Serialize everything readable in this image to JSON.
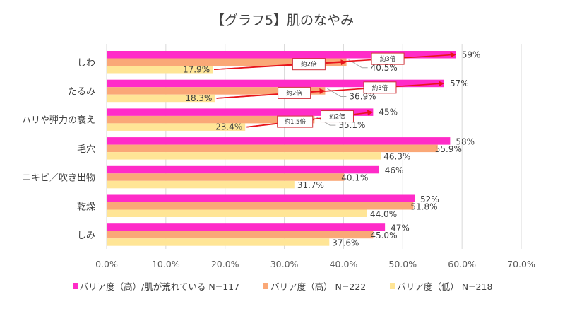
{
  "chart_data": {
    "type": "bar",
    "orientation": "horizontal",
    "title": "【グラフ5】肌のなやみ",
    "xlabel": "",
    "ylabel": "",
    "xlim": [
      0,
      70
    ],
    "x_ticks": [
      "0.0%",
      "10.0%",
      "20.0%",
      "30.0%",
      "40.0%",
      "50.0%",
      "60.0%",
      "70.0%"
    ],
    "x_tick_values": [
      0,
      10,
      20,
      30,
      40,
      50,
      60,
      70
    ],
    "grid": true,
    "legend_position": "bottom",
    "categories": [
      "しわ",
      "たるみ",
      "ハリや弾力の衰え",
      "毛穴",
      "ニキビ／吹き出物",
      "乾燥",
      "しみ"
    ],
    "series": [
      {
        "name": "バリア度（高）/肌が荒れている N=117",
        "color": "#FF2BC8",
        "values": [
          59,
          57,
          45,
          58,
          46,
          52,
          47
        ],
        "labels": [
          "59%",
          "57%",
          "45%",
          "58%",
          "46%",
          "52%",
          "47%"
        ]
      },
      {
        "name": "バリア度（高） N=222",
        "color": "#FAA877",
        "values": [
          40.5,
          36.9,
          35.1,
          55.9,
          40.1,
          51.8,
          45.0
        ],
        "labels": [
          "40.5%",
          "36.9%",
          "35.1%",
          "55.9%",
          "40.1%",
          "51.8%",
          "45.0%"
        ]
      },
      {
        "name": "バリア度（低） N=218",
        "color": "#FFE596",
        "values": [
          17.9,
          18.3,
          23.4,
          46.3,
          31.7,
          44.0,
          37.6
        ],
        "labels": [
          "17.9%",
          "18.3%",
          "23.4%",
          "46.3%",
          "31.7%",
          "44.0%",
          "37.6%"
        ]
      }
    ],
    "annotations": [
      {
        "category": "しわ",
        "from_series": 2,
        "to_series": 0,
        "text": "約3倍"
      },
      {
        "category": "しわ",
        "from_series": 2,
        "to_series": 1,
        "text": "約2倍"
      },
      {
        "category": "たるみ",
        "from_series": 2,
        "to_series": 0,
        "text": "約3倍"
      },
      {
        "category": "たるみ",
        "from_series": 2,
        "to_series": 1,
        "text": "約2倍"
      },
      {
        "category": "ハリや弾力の衰え",
        "from_series": 2,
        "to_series": 0,
        "text": "約2倍"
      },
      {
        "category": "ハリや弾力の衰え",
        "from_series": 2,
        "to_series": 1,
        "text": "約1.5倍"
      }
    ]
  },
  "colors": {
    "arrow": "#E8141B",
    "grid": "#D9D9D9",
    "leader": "#A6A6A6"
  }
}
